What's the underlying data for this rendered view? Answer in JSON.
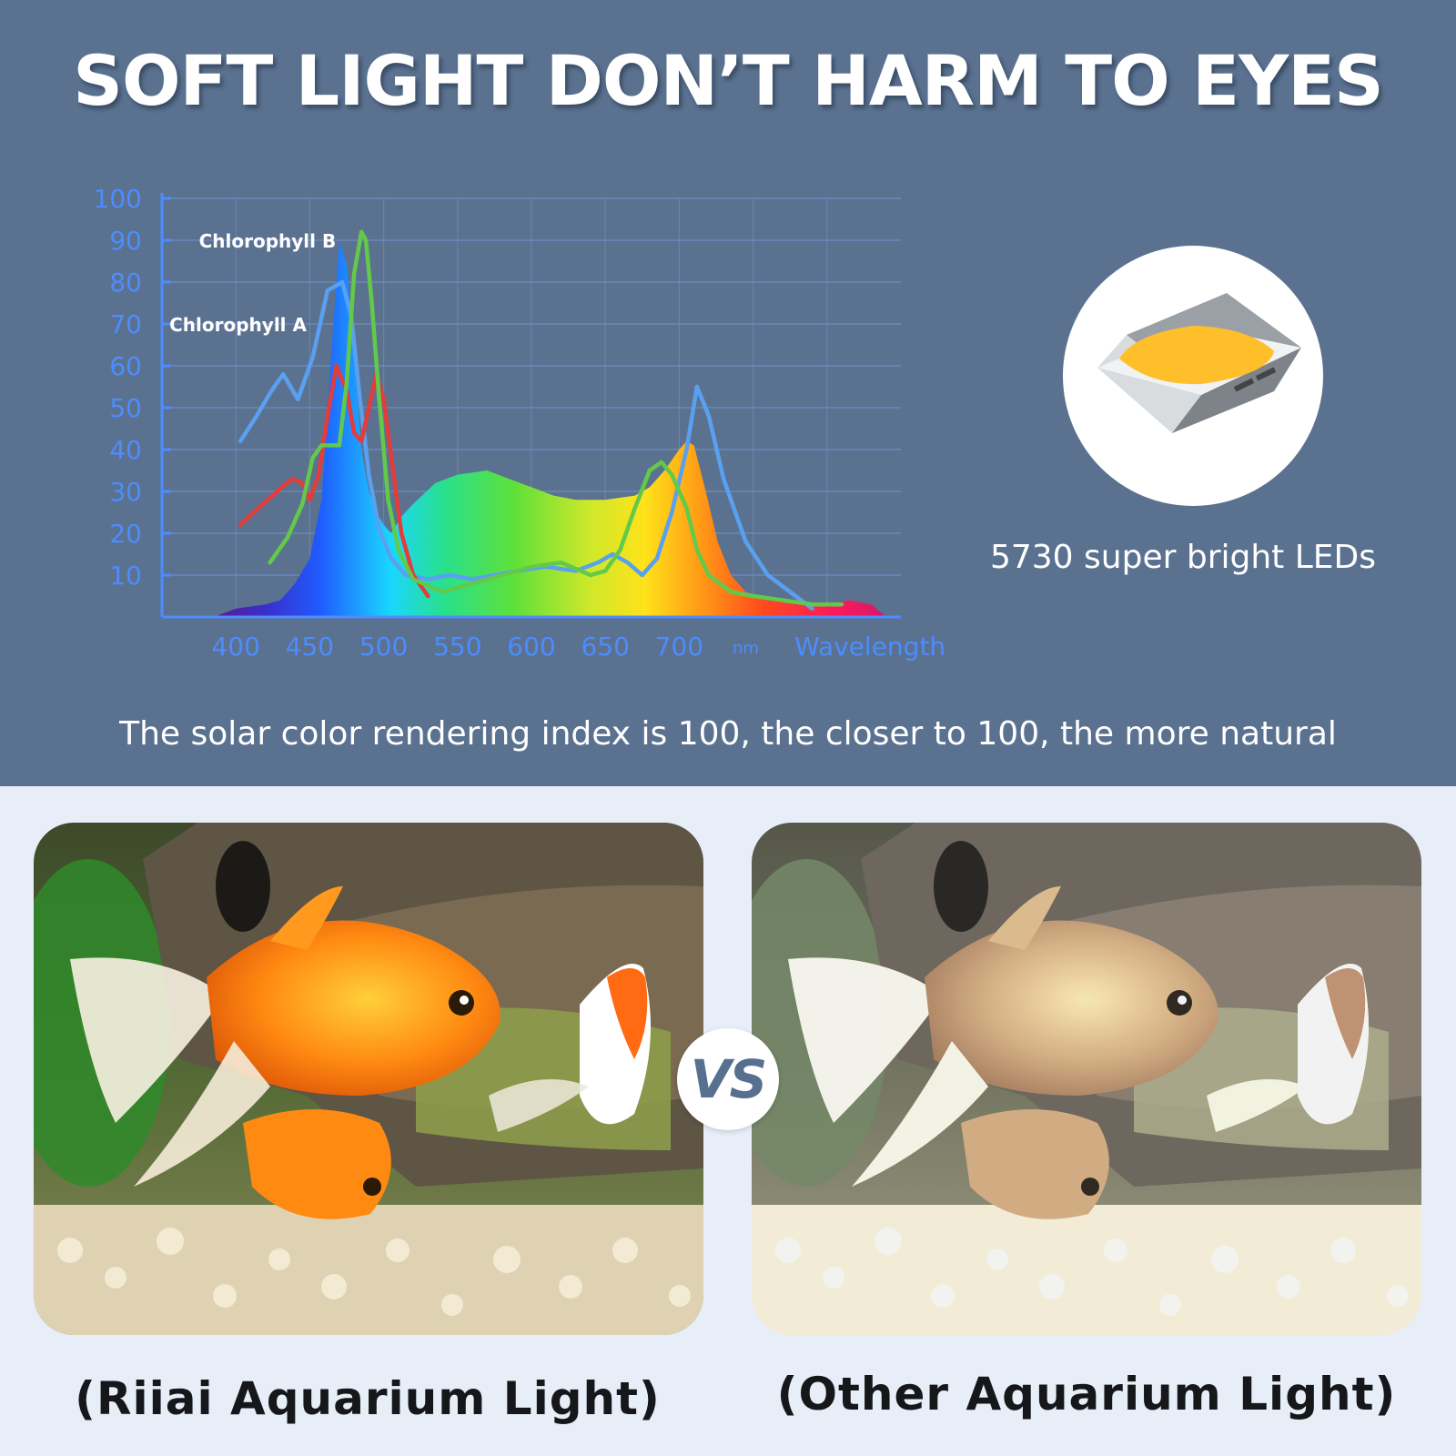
{
  "headline": "SOFT LIGHT DON’T HARM TO EYES",
  "led_caption": "5730 super bright LEDs",
  "cri_text": "The solar color rendering index is 100, the closer to 100, the more natural",
  "vs_text": "VS",
  "left_label": "(Riiai Aquarium Light)",
  "right_label": "(Other Aquarium Light)",
  "colors": {
    "background_top": "#5a7290",
    "background_bottom": "#e7eef8",
    "axis": "#4d8cff",
    "grid": "#6f8dc4",
    "chlorophyll_b_line": "#5aa0f0",
    "chlorophyll_a_line": "#e43b3b",
    "green_line": "#63c94a",
    "led_yellow": "#ffbf2a"
  },
  "chart_data": {
    "type": "line",
    "xlabel": "Wavelength",
    "x_unit": "nm",
    "x_ticks": [
      400,
      450,
      500,
      550,
      600,
      650,
      700
    ],
    "y_ticks": [
      10,
      20,
      30,
      40,
      50,
      60,
      70,
      80,
      90,
      100
    ],
    "xlim": [
      350,
      850
    ],
    "ylim": [
      0,
      100
    ],
    "grid": true,
    "annotations": [
      {
        "text": "Chlorophyll B",
        "x": 375,
        "y": 90
      },
      {
        "text": "Chlorophyll A",
        "x": 355,
        "y": 70
      }
    ],
    "series": [
      {
        "name": "",
        "kind": "filled-spectrum",
        "x": [
          385,
          400,
          420,
          430,
          440,
          450,
          458,
          464,
          470,
          475,
          480,
          485,
          490,
          495,
          500,
          505,
          512,
          520,
          535,
          550,
          570,
          585,
          600,
          615,
          630,
          650,
          670,
          680,
          690,
          700,
          705,
          710,
          718,
          726,
          735,
          745,
          760,
          780,
          800,
          815,
          830,
          840
        ],
        "values": [
          0,
          2,
          3,
          4,
          8,
          14,
          28,
          60,
          90,
          84,
          62,
          40,
          30,
          25,
          22,
          20,
          24,
          27,
          32,
          34,
          35,
          33,
          31,
          29,
          28,
          28,
          29,
          31,
          35,
          40,
          42,
          41,
          30,
          18,
          10,
          6,
          4,
          3,
          3,
          4,
          3,
          0
        ]
      },
      {
        "name": "",
        "kind": "line",
        "color_key": "chlorophyll_b_line",
        "x": [
          403,
          414,
          424,
          432,
          442,
          452,
          462,
          472,
          478,
          484,
          490,
          497,
          505,
          515,
          530,
          545,
          560,
          575,
          590,
          610,
          630,
          645,
          655,
          665,
          675,
          685,
          695,
          705,
          712,
          720,
          730,
          745,
          760,
          775,
          790
        ],
        "values": [
          42,
          48,
          54,
          58,
          52,
          62,
          78,
          80,
          72,
          52,
          34,
          21,
          14,
          10,
          9,
          10,
          9,
          10,
          11,
          12,
          11,
          13,
          15,
          13,
          10,
          14,
          25,
          40,
          55,
          48,
          33,
          18,
          10,
          6,
          2
        ]
      },
      {
        "name": "",
        "kind": "line",
        "color_key": "chlorophyll_a_line",
        "x": [
          403,
          415,
          428,
          438,
          445,
          450,
          456,
          462,
          468,
          475,
          480,
          485,
          490,
          495,
          500,
          506,
          512,
          520,
          530
        ],
        "values": [
          22,
          26,
          30,
          33,
          32,
          28,
          34,
          48,
          60,
          54,
          44,
          42,
          50,
          58,
          52,
          36,
          20,
          10,
          5
        ]
      },
      {
        "name": "",
        "kind": "line",
        "color_key": "green_line",
        "x": [
          423,
          435,
          445,
          452,
          458,
          470,
          475,
          480,
          485,
          488,
          492,
          497,
          503,
          510,
          520,
          540,
          560,
          580,
          600,
          620,
          640,
          650,
          660,
          670,
          680,
          688,
          695,
          705,
          712,
          720,
          735,
          750,
          770,
          790,
          810
        ],
        "values": [
          13,
          19,
          27,
          38,
          41,
          41,
          56,
          82,
          92,
          90,
          75,
          52,
          28,
          16,
          9,
          6,
          8,
          10,
          12,
          13,
          10,
          11,
          16,
          26,
          35,
          37,
          34,
          26,
          16,
          10,
          6,
          5,
          4,
          3,
          3
        ]
      }
    ]
  }
}
